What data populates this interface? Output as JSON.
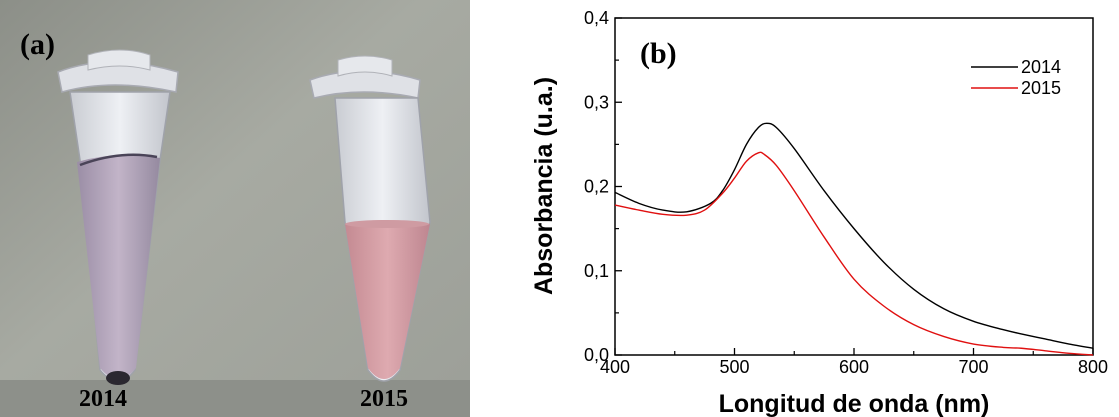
{
  "panel_a": {
    "letter": "(a)",
    "tube_labels": [
      "2014",
      "2015"
    ]
  },
  "chart_data": {
    "type": "line",
    "panel_letter": "(b)",
    "xlabel": "Longitud de onda (nm)",
    "ylabel": "Absorbancia (u.a.)",
    "xlim": [
      400,
      800
    ],
    "ylim": [
      0.0,
      0.4
    ],
    "x_ticks": [
      400,
      500,
      600,
      700,
      800
    ],
    "y_ticks": [
      "0,0",
      "0,1",
      "0,2",
      "0,3",
      "0,4"
    ],
    "y_tick_values": [
      0.0,
      0.1,
      0.2,
      0.3,
      0.4
    ],
    "grid": false,
    "legend_position": "top-right",
    "series": [
      {
        "name": "2014",
        "color": "#000000",
        "x": [
          400,
          420,
          440,
          460,
          480,
          490,
          500,
          510,
          520,
          527,
          535,
          550,
          575,
          600,
          625,
          650,
          675,
          700,
          725,
          740,
          760,
          780,
          800
        ],
        "y": [
          0.193,
          0.18,
          0.172,
          0.17,
          0.18,
          0.195,
          0.22,
          0.25,
          0.27,
          0.275,
          0.27,
          0.245,
          0.195,
          0.15,
          0.11,
          0.078,
          0.055,
          0.04,
          0.03,
          0.025,
          0.019,
          0.013,
          0.008
        ]
      },
      {
        "name": "2015",
        "color": "#e01010",
        "x": [
          400,
          420,
          440,
          460,
          475,
          490,
          500,
          510,
          520,
          525,
          535,
          550,
          575,
          600,
          625,
          650,
          675,
          700,
          725,
          740,
          760,
          780,
          800
        ],
        "y": [
          0.178,
          0.172,
          0.167,
          0.166,
          0.172,
          0.192,
          0.21,
          0.23,
          0.24,
          0.238,
          0.225,
          0.195,
          0.14,
          0.09,
          0.058,
          0.036,
          0.022,
          0.013,
          0.009,
          0.008,
          0.005,
          0.002,
          0.0
        ]
      }
    ]
  }
}
